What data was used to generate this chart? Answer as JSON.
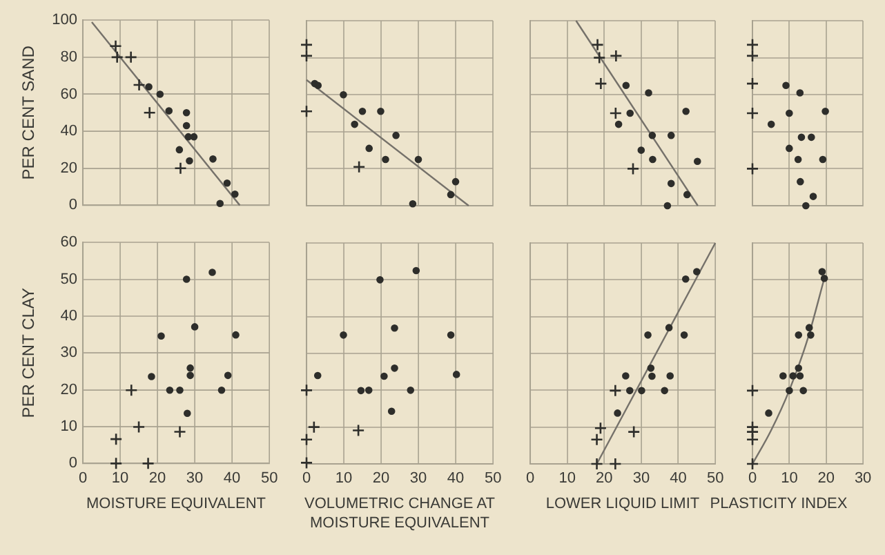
{
  "chart_data": [
    {
      "type": "scatter",
      "ylabel": "PER CENT SAND",
      "xlim": [
        0,
        50
      ],
      "xticks": [
        0,
        10,
        20,
        30,
        40,
        50
      ],
      "ylim": [
        0,
        100
      ],
      "yticks": [
        0,
        20,
        40,
        60,
        80,
        100
      ],
      "grid": true,
      "tick_labels": "y",
      "series": [
        {
          "type": "scatter",
          "marker": "cross",
          "color": "#2e2e2b",
          "x": [
            8.8,
            9.2,
            12.9,
            15.1,
            17.9,
            26.2
          ],
          "values": [
            86,
            80,
            80,
            65,
            50,
            20
          ]
        },
        {
          "type": "scatter",
          "marker": "circle",
          "color": "#2e2e2b",
          "x": [
            17.7,
            20.7,
            23.1,
            27.8,
            27.8,
            28.3,
            29.8,
            25.9,
            28.6,
            34.9,
            38.7,
            40.8,
            36.8
          ],
          "values": [
            64,
            60,
            51,
            50,
            43,
            37,
            37,
            30,
            24,
            25,
            12,
            6,
            1
          ]
        },
        {
          "type": "line",
          "marker": "none",
          "color": "#75716a",
          "x": [
            2.4,
            42.1
          ],
          "values": [
            99,
            0
          ]
        }
      ]
    },
    {
      "type": "scatter",
      "xlim": [
        0,
        50
      ],
      "xticks": [
        0,
        10,
        20,
        30,
        40,
        50
      ],
      "ylim": [
        0,
        100
      ],
      "yticks": [
        0,
        20,
        40,
        60,
        80,
        100
      ],
      "grid": true,
      "tick_labels": false,
      "series": [
        {
          "type": "scatter",
          "marker": "cross",
          "color": "#2e2e2b",
          "x": [
            0,
            0,
            0,
            14.1
          ],
          "values": [
            87,
            81,
            51,
            21
          ]
        },
        {
          "type": "scatter",
          "marker": "circle",
          "color": "#2e2e2b",
          "x": [
            2.2,
            3.1,
            9.9,
            12.9,
            15,
            19.9,
            16.8,
            21.2,
            24,
            28.5,
            30,
            40,
            38.7
          ],
          "values": [
            66,
            65,
            60,
            44,
            51,
            51,
            31,
            25,
            38,
            1,
            25,
            13,
            6
          ]
        },
        {
          "type": "line",
          "marker": "none",
          "color": "#75716a",
          "x": [
            0,
            43.5
          ],
          "values": [
            68,
            0
          ]
        }
      ]
    },
    {
      "type": "scatter",
      "xlim": [
        0,
        50
      ],
      "xticks": [
        0,
        10,
        20,
        30,
        40,
        50
      ],
      "ylim": [
        0,
        100
      ],
      "yticks": [
        0,
        20,
        40,
        60,
        80,
        100
      ],
      "grid": true,
      "tick_labels": false,
      "series": [
        {
          "type": "scatter",
          "marker": "cross",
          "color": "#2e2e2b",
          "x": [
            18.2,
            18.7,
            23.2,
            19.1,
            23.1,
            27.8
          ],
          "values": [
            87,
            80,
            81,
            66,
            50,
            20
          ]
        },
        {
          "type": "scatter",
          "marker": "circle",
          "color": "#2e2e2b",
          "x": [
            25.9,
            32,
            27,
            23.9,
            42.1,
            33,
            38.1,
            30,
            33.1,
            45.2,
            38.1,
            42.4,
            37.1
          ],
          "values": [
            65,
            61,
            50,
            44,
            51,
            38,
            38,
            30,
            25,
            24,
            12,
            6,
            0
          ]
        },
        {
          "type": "line",
          "marker": "none",
          "color": "#75716a",
          "x": [
            12.4,
            45.3
          ],
          "values": [
            100,
            0
          ]
        }
      ]
    },
    {
      "type": "scatter",
      "xlim": [
        0,
        30
      ],
      "xticks": [
        0,
        10,
        20,
        30
      ],
      "ylim": [
        0,
        100
      ],
      "yticks": [
        0,
        20,
        40,
        60,
        80,
        100
      ],
      "grid": true,
      "tick_labels": false,
      "series": [
        {
          "type": "scatter",
          "marker": "cross",
          "color": "#2e2e2b",
          "x": [
            0,
            0,
            0,
            0,
            0
          ],
          "values": [
            87,
            81,
            66,
            50,
            20
          ]
        },
        {
          "type": "scatter",
          "marker": "circle",
          "color": "#2e2e2b",
          "x": [
            9.1,
            12.9,
            10,
            19.8,
            5.1,
            13.3,
            16,
            10,
            12.4,
            19.1,
            13,
            16.5,
            14.5
          ],
          "values": [
            65,
            61,
            50,
            51,
            44,
            37,
            37,
            31,
            25,
            25,
            13,
            5,
            0
          ]
        }
      ]
    },
    {
      "type": "scatter",
      "ylabel": "PER CENT CLAY",
      "xlabel": "MOISTURE EQUIVALENT",
      "xlim": [
        0,
        50
      ],
      "xticks": [
        0,
        10,
        20,
        30,
        40,
        50
      ],
      "ylim": [
        0,
        60
      ],
      "yticks": [
        0,
        10,
        20,
        30,
        40,
        50,
        60
      ],
      "grid": true,
      "series": [
        {
          "type": "scatter",
          "marker": "cross",
          "color": "#2e2e2b",
          "x": [
            8.9,
            8.9,
            13,
            15,
            17.5,
            26
          ],
          "values": [
            6.6,
            0,
            19.9,
            9.9,
            0,
            8.6
          ]
        },
        {
          "type": "scatter",
          "marker": "circle",
          "color": "#2e2e2b",
          "x": [
            18.4,
            21,
            23.3,
            26,
            27.8,
            28,
            28.8,
            28.8,
            30,
            34.7,
            37.2,
            38.9,
            41
          ],
          "values": [
            23.6,
            34.6,
            19.9,
            19.9,
            50,
            13.6,
            25.9,
            23.9,
            37.1,
            51.9,
            19.9,
            23.9,
            34.9
          ]
        }
      ]
    },
    {
      "type": "scatter",
      "xlabel": "VOLUMETRIC CHANGE AT MOISTURE EQUIVALENT",
      "xlim": [
        0,
        50
      ],
      "xticks": [
        0,
        10,
        20,
        30,
        40,
        50
      ],
      "ylim": [
        0,
        60
      ],
      "yticks": [
        0,
        10,
        20,
        30,
        40,
        50,
        60
      ],
      "grid": true,
      "tick_labels": "x",
      "series": [
        {
          "type": "scatter",
          "marker": "cross",
          "color": "#2e2e2b",
          "x": [
            0,
            0,
            0,
            2,
            13.9
          ],
          "values": [
            20,
            6.6,
            0.3,
            10,
            9.1
          ]
        },
        {
          "type": "scatter",
          "marker": "circle",
          "color": "#2e2e2b",
          "x": [
            3,
            9.9,
            14.6,
            16.7,
            19.7,
            20.8,
            22.8,
            23.6,
            23.6,
            27.9,
            29.4,
            38.7,
            40.2
          ],
          "values": [
            24,
            35,
            19.9,
            20,
            50,
            23.8,
            14.3,
            26,
            36.9,
            20,
            52.5,
            35,
            24.3
          ]
        }
      ]
    },
    {
      "type": "scatter",
      "xlabel": "LOWER LIQUID LIMIT",
      "xlim": [
        0,
        50
      ],
      "xticks": [
        0,
        10,
        20,
        30,
        40,
        50
      ],
      "ylim": [
        0,
        60
      ],
      "yticks": [
        0,
        10,
        20,
        30,
        40,
        50,
        60
      ],
      "grid": true,
      "tick_labels": "x",
      "series": [
        {
          "type": "scatter",
          "marker": "cross",
          "color": "#2e2e2b",
          "x": [
            18,
            19,
            18,
            23,
            23,
            28
          ],
          "values": [
            0,
            9.7,
            6.6,
            0,
            19.9,
            8.7
          ]
        },
        {
          "type": "scatter",
          "marker": "circle",
          "color": "#2e2e2b",
          "x": [
            23.6,
            25.8,
            26.9,
            30.1,
            31.8,
            32.6,
            32.9,
            36.3,
            37.5,
            37.8,
            41.6,
            42,
            45
          ],
          "values": [
            13.8,
            23.9,
            19.9,
            19.9,
            35,
            26,
            23.8,
            19.9,
            37,
            23.9,
            35,
            50.2,
            52.2
          ]
        },
        {
          "type": "line",
          "marker": "none",
          "color": "#75716a",
          "x": [
            18,
            50
          ],
          "values": [
            0,
            60
          ]
        }
      ]
    },
    {
      "type": "scatter",
      "xlabel": "PLASTICITY INDEX",
      "xlim": [
        0,
        30
      ],
      "xticks": [
        0,
        10,
        20,
        30
      ],
      "ylim": [
        0,
        60
      ],
      "yticks": [
        0,
        10,
        20,
        30,
        40,
        50,
        60
      ],
      "grid": true,
      "tick_labels": "x",
      "series": [
        {
          "type": "scatter",
          "marker": "cross",
          "color": "#2e2e2b",
          "x": [
            0,
            0,
            0,
            0,
            0
          ],
          "values": [
            0,
            10,
            8.7,
            6.6,
            19.9
          ]
        },
        {
          "type": "scatter",
          "marker": "circle",
          "color": "#2e2e2b",
          "x": [
            4.4,
            8.3,
            10,
            11,
            12.5,
            12.9,
            13.8,
            12.5,
            15.4,
            15.8,
            18.9,
            19.5
          ],
          "values": [
            13.8,
            23.9,
            19.9,
            23.9,
            26,
            23.9,
            19.9,
            35,
            37,
            35,
            52.2,
            50.4
          ]
        },
        {
          "type": "line",
          "marker": "none",
          "color": "#75716a",
          "x": [
            0,
            5,
            10,
            15,
            19.5
          ],
          "values": [
            0,
            9,
            20,
            34,
            50.4
          ]
        }
      ]
    }
  ]
}
